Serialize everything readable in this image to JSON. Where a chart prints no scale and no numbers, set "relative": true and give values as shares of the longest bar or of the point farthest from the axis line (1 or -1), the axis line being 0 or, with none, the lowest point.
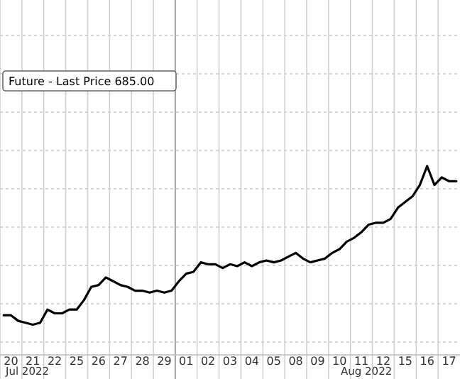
{
  "chart_data": {
    "type": "line",
    "relative": true,
    "grid": true,
    "legend": "top left",
    "categories": [
      null,
      "20",
      null,
      null,
      "21",
      null,
      null,
      "22",
      null,
      null,
      "25",
      null,
      null,
      "26",
      null,
      null,
      "27",
      null,
      null,
      "28",
      null,
      null,
      "29",
      null,
      null,
      "01",
      null,
      null,
      "02",
      null,
      null,
      "03",
      null,
      null,
      "04",
      null,
      null,
      "05",
      null,
      null,
      "08",
      null,
      null,
      "09",
      null,
      null,
      "10",
      null,
      null,
      "11",
      null,
      null,
      "12",
      null,
      null,
      "15",
      null,
      null,
      "16",
      null,
      null,
      "17",
      null
    ],
    "annotations": [
      "Jul 2022",
      "Aug 2022"
    ],
    "series": [
      {
        "name": "Future - Last Price 685.00",
        "color": "#000000",
        "values": [
          0.21,
          0.21,
          0.18,
          0.17,
          0.16,
          0.17,
          0.24,
          0.22,
          0.22,
          0.24,
          0.24,
          0.29,
          0.36,
          0.37,
          0.41,
          0.39,
          0.37,
          0.36,
          0.34,
          0.34,
          0.33,
          0.34,
          0.33,
          0.34,
          0.39,
          0.43,
          0.44,
          0.49,
          0.48,
          0.48,
          0.46,
          0.48,
          0.47,
          0.49,
          0.47,
          0.49,
          0.5,
          0.49,
          0.5,
          0.52,
          0.54,
          0.51,
          0.49,
          0.5,
          0.51,
          0.54,
          0.56,
          0.6,
          0.62,
          0.65,
          0.69,
          0.7,
          0.7,
          0.72,
          0.78,
          0.81,
          0.84,
          0.9,
          1,
          0.9,
          0.94,
          0.92,
          0.92
        ]
      }
    ]
  }
}
